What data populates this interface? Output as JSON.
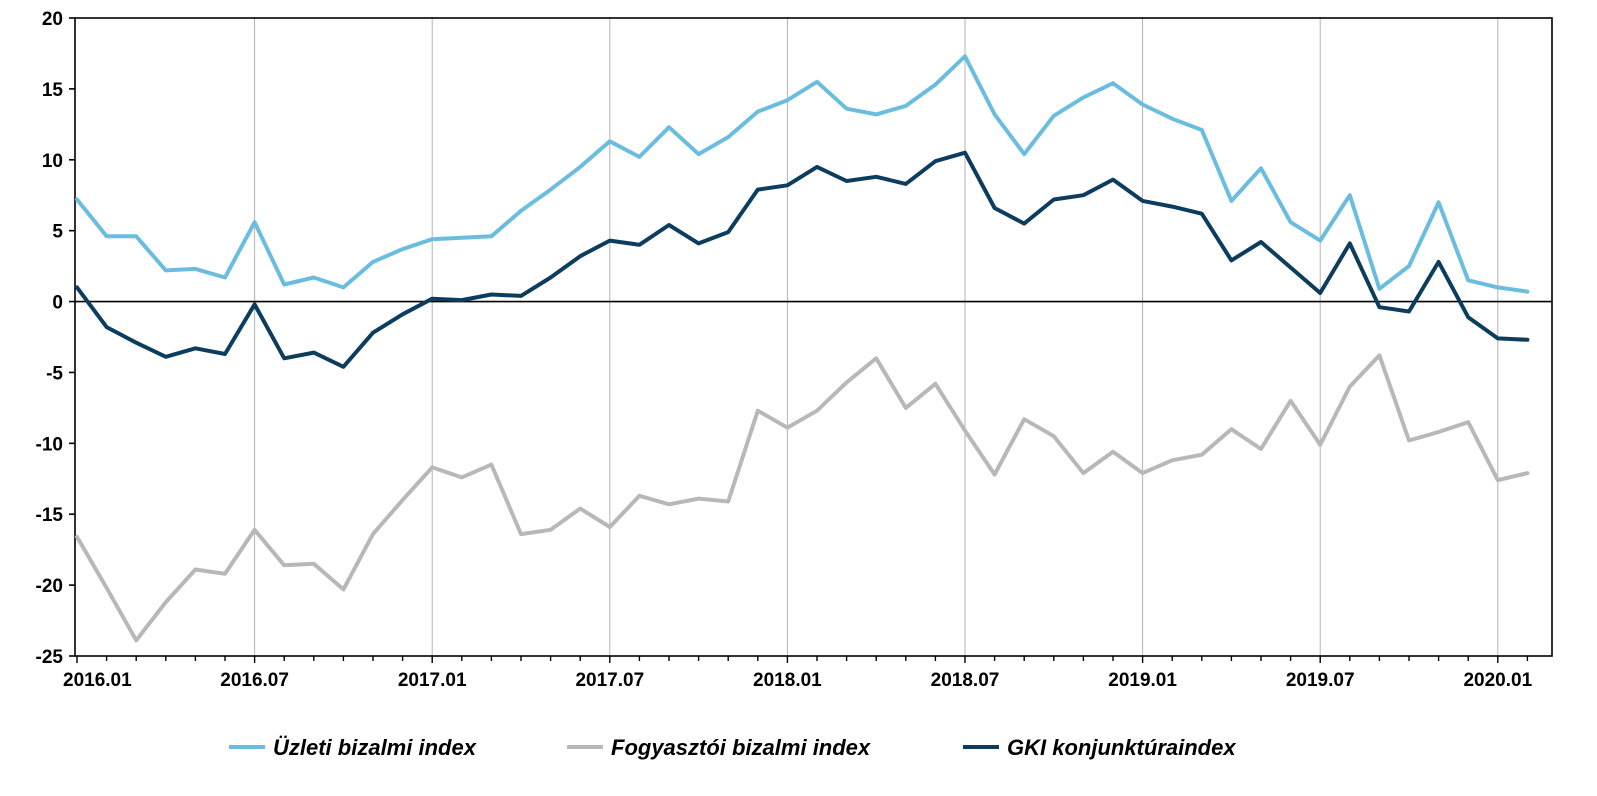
{
  "chart_data": {
    "type": "line",
    "x_tick_labels": [
      "2016.01",
      "2016.07",
      "2017.01",
      "2017.07",
      "2018.01",
      "2018.07",
      "2019.01",
      "2019.07",
      "2020.01"
    ],
    "y_tick_labels": [
      "20",
      "15",
      "10",
      "5",
      "0",
      "-5",
      "-10",
      "-15",
      "-20",
      "-25"
    ],
    "ylim": [
      -25,
      20
    ],
    "y_step": 5,
    "x": [
      "2016.01",
      "2016.02",
      "2016.03",
      "2016.04",
      "2016.05",
      "2016.06",
      "2016.07",
      "2016.08",
      "2016.09",
      "2016.10",
      "2016.11",
      "2016.12",
      "2017.01",
      "2017.02",
      "2017.03",
      "2017.04",
      "2017.05",
      "2017.06",
      "2017.07",
      "2017.08",
      "2017.09",
      "2017.10",
      "2017.11",
      "2017.12",
      "2018.01",
      "2018.02",
      "2018.03",
      "2018.04",
      "2018.05",
      "2018.06",
      "2018.07",
      "2018.08",
      "2018.09",
      "2018.10",
      "2018.11",
      "2018.12",
      "2019.01",
      "2019.02",
      "2019.03",
      "2019.04",
      "2019.05",
      "2019.06",
      "2019.07",
      "2019.08",
      "2019.09",
      "2019.10",
      "2019.11",
      "2019.12",
      "2020.01",
      "2020.02"
    ],
    "series": [
      {
        "name": "Üzleti bizalmi index",
        "color": "#6bbde0",
        "values": [
          7.2,
          4.6,
          4.6,
          2.2,
          2.3,
          1.7,
          5.6,
          1.2,
          1.7,
          1.0,
          2.8,
          3.7,
          4.4,
          4.5,
          4.6,
          6.4,
          7.9,
          9.5,
          11.3,
          10.2,
          12.3,
          10.4,
          11.6,
          13.4,
          14.2,
          15.5,
          13.6,
          13.2,
          13.8,
          15.3,
          17.3,
          13.2,
          10.4,
          13.1,
          14.4,
          15.4,
          13.9,
          12.9,
          12.1,
          7.1,
          9.4,
          5.6,
          4.3,
          7.5,
          0.9,
          2.5,
          7.0,
          1.5,
          1.0,
          0.7
        ]
      },
      {
        "name": "Fogyasztói bizalmi index",
        "color": "#b8b8b8",
        "values": [
          -16.6,
          -20.2,
          -23.9,
          -21.2,
          -18.9,
          -19.2,
          -16.1,
          -18.6,
          -18.5,
          -20.3,
          -16.4,
          -14.0,
          -11.7,
          -12.4,
          -11.5,
          -16.4,
          -16.1,
          -14.6,
          -15.9,
          -13.7,
          -14.3,
          -13.9,
          -14.1,
          -7.7,
          -8.9,
          -7.7,
          -5.7,
          -4.0,
          -7.5,
          -5.8,
          -9.1,
          -12.2,
          -8.3,
          -9.5,
          -12.1,
          -10.6,
          -12.1,
          -11.2,
          -10.8,
          -9.0,
          -10.4,
          -7.0,
          -10.1,
          -6.0,
          -3.8,
          -9.8,
          -9.2,
          -8.5,
          -12.6,
          -12.1
        ]
      },
      {
        "name": "GKI konjunktúraindex",
        "color": "#0d3d5e",
        "values": [
          1.0,
          -1.8,
          -2.9,
          -3.9,
          -3.3,
          -3.7,
          -0.2,
          -4.0,
          -3.6,
          -4.6,
          -2.2,
          -0.9,
          0.2,
          0.1,
          0.5,
          0.4,
          1.7,
          3.2,
          4.3,
          4.0,
          5.4,
          4.1,
          4.9,
          7.9,
          8.2,
          9.5,
          8.5,
          8.8,
          8.3,
          9.9,
          10.5,
          6.6,
          5.5,
          7.2,
          7.5,
          8.6,
          7.1,
          6.7,
          6.2,
          2.9,
          4.2,
          2.4,
          0.6,
          4.1,
          -0.4,
          -0.7,
          2.8,
          -1.1,
          -2.6,
          -2.7
        ]
      }
    ],
    "legend_position": "bottom",
    "vertical_gridlines": true
  }
}
